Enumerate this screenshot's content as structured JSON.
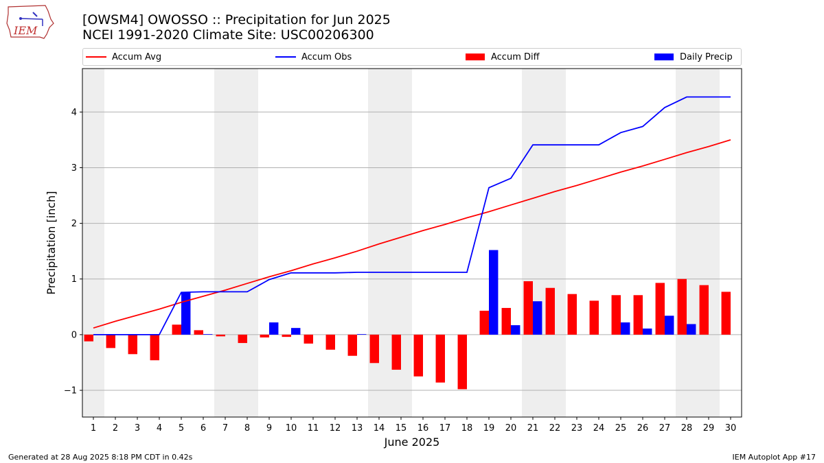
{
  "logo": {
    "text": "IEM",
    "icon": "iowa-state-outline-logo-icon"
  },
  "header": {
    "title_line1": "[OWSM4] OWOSSO :: Precipitation for Jun 2025",
    "title_line2": "NCEI 1991-2020 Climate Site: USC00206300"
  },
  "legend": {
    "items": [
      {
        "label": "Accum Avg",
        "kind": "line",
        "color": "#ff0000"
      },
      {
        "label": "Accum Obs",
        "kind": "line",
        "color": "#0000ff"
      },
      {
        "label": "Accum Diff",
        "kind": "bar",
        "color": "#ff0000"
      },
      {
        "label": "Daily Precip",
        "kind": "bar",
        "color": "#0000ff"
      }
    ],
    "placement": "top"
  },
  "footer": {
    "left": "Generated at 28 Aug 2025 8:18 PM CDT in 0.42s",
    "right": "IEM Autoplot App #17"
  },
  "chart_data": {
    "type": "bar",
    "xlabel": "June 2025",
    "ylabel": "Precipitation [inch]",
    "ylim": [
      -1.48,
      4.78
    ],
    "yticks": [
      -1,
      0,
      1,
      2,
      3,
      4
    ],
    "ytick_labels": [
      "−1",
      "0",
      "1",
      "2",
      "3",
      "4"
    ],
    "grid": "horizontal",
    "categories": [
      1,
      2,
      3,
      4,
      5,
      6,
      7,
      8,
      9,
      10,
      11,
      12,
      13,
      14,
      15,
      16,
      17,
      18,
      19,
      20,
      21,
      22,
      23,
      24,
      25,
      26,
      27,
      28,
      29,
      30
    ],
    "weekend_shading": [
      [
        1,
        1
      ],
      [
        7,
        8
      ],
      [
        14,
        15
      ],
      [
        21,
        22
      ],
      [
        28,
        29
      ]
    ],
    "shade_color": "#eeeeee",
    "series": [
      {
        "name": "Accum Avg",
        "kind": "line",
        "color": "#ff0000",
        "values": [
          0.12,
          0.24,
          0.35,
          0.46,
          0.58,
          0.69,
          0.8,
          0.92,
          1.04,
          1.15,
          1.27,
          1.38,
          1.5,
          1.63,
          1.75,
          1.87,
          1.98,
          2.1,
          2.21,
          2.33,
          2.45,
          2.57,
          2.68,
          2.8,
          2.92,
          3.03,
          3.15,
          3.27,
          3.38,
          3.5
        ]
      },
      {
        "name": "Accum Obs",
        "kind": "line",
        "color": "#0000ff",
        "values": [
          0.0,
          0.0,
          0.0,
          0.0,
          0.76,
          0.77,
          0.77,
          0.77,
          0.99,
          1.11,
          1.11,
          1.11,
          1.12,
          1.12,
          1.12,
          1.12,
          1.12,
          1.12,
          2.64,
          2.81,
          3.41,
          3.41,
          3.41,
          3.41,
          3.63,
          3.74,
          4.08,
          4.27,
          4.27,
          4.27
        ]
      },
      {
        "name": "Accum Diff",
        "kind": "bar",
        "color": "#ff0000",
        "values": [
          -0.12,
          -0.24,
          -0.35,
          -0.46,
          0.18,
          0.08,
          -0.03,
          -0.15,
          -0.05,
          -0.04,
          -0.16,
          -0.27,
          -0.38,
          -0.51,
          -0.63,
          -0.75,
          -0.86,
          -0.98,
          0.43,
          0.48,
          0.96,
          0.84,
          0.73,
          0.61,
          0.71,
          0.71,
          0.93,
          1.0,
          0.89,
          0.77
        ]
      },
      {
        "name": "Daily Precip",
        "kind": "bar",
        "color": "#0000ff",
        "values": [
          0,
          0,
          0,
          0,
          0.76,
          0.01,
          0,
          0,
          0.22,
          0.12,
          0,
          0,
          0.01,
          0,
          0,
          0,
          0,
          0,
          1.52,
          0.17,
          0.6,
          0,
          0,
          0,
          0.22,
          0.11,
          0.34,
          0.19,
          0,
          0
        ]
      }
    ]
  }
}
